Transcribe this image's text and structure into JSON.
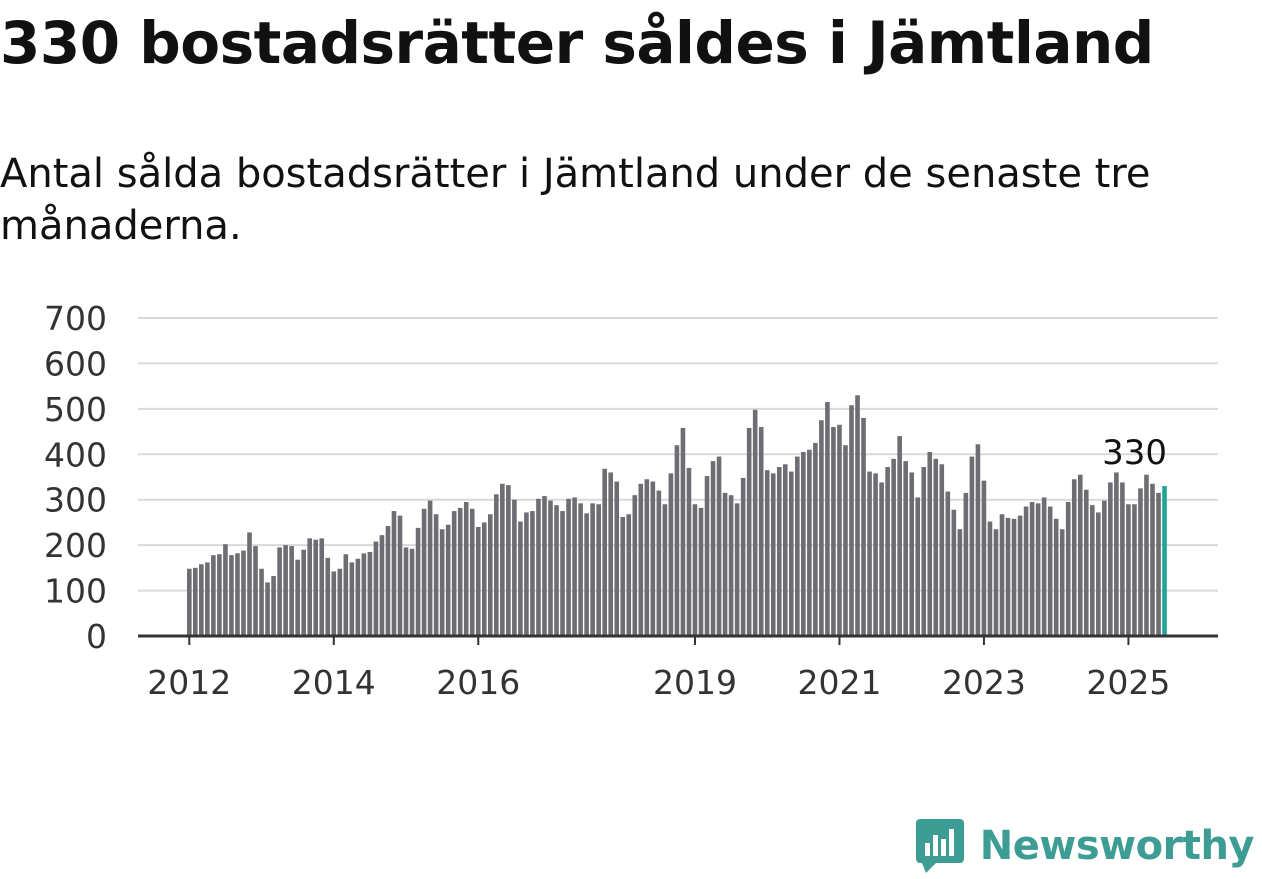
{
  "title": "330 bostadsrätter såldes i Jämtland",
  "subtitle": "Antal sålda bostadsrätter i Jämtland under de senaste tre månaderna.",
  "brand": {
    "name": "Newsworthy",
    "logo_icon": "newsworthy-logo-icon",
    "color": "#3d9d95"
  },
  "chart_data": {
    "type": "bar",
    "title": "",
    "xlabel": "",
    "ylabel": "",
    "ylim": [
      0,
      700
    ],
    "y_ticks": [
      "0",
      "100",
      "200",
      "300",
      "400",
      "500",
      "600",
      "700"
    ],
    "x_ticks": [
      {
        "label": "2012",
        "index": 0
      },
      {
        "label": "2014",
        "index": 24
      },
      {
        "label": "2016",
        "index": 48
      },
      {
        "label": "2019",
        "index": 84
      },
      {
        "label": "2021",
        "index": 108
      },
      {
        "label": "2023",
        "index": 132
      },
      {
        "label": "2025",
        "index": 156
      }
    ],
    "grid": true,
    "bar_color": "#6e6d73",
    "highlight_color": "#22a39a",
    "highlight_label": "330",
    "values": [
      148,
      150,
      158,
      162,
      178,
      180,
      202,
      178,
      182,
      188,
      228,
      198,
      148,
      118,
      132,
      195,
      200,
      198,
      168,
      190,
      215,
      212,
      215,
      172,
      142,
      148,
      180,
      162,
      170,
      182,
      185,
      208,
      222,
      242,
      275,
      265,
      195,
      192,
      238,
      280,
      298,
      268,
      235,
      245,
      275,
      282,
      295,
      280,
      240,
      250,
      268,
      312,
      335,
      332,
      300,
      252,
      272,
      275,
      302,
      308,
      298,
      288,
      275,
      302,
      305,
      292,
      270,
      292,
      290,
      368,
      360,
      340,
      262,
      268,
      310,
      335,
      345,
      340,
      320,
      290,
      358,
      420,
      458,
      370,
      290,
      282,
      352,
      385,
      395,
      315,
      310,
      292,
      348,
      458,
      498,
      460,
      365,
      358,
      372,
      378,
      362,
      395,
      405,
      410,
      425,
      475,
      515,
      460,
      465,
      420,
      508,
      530,
      480,
      362,
      358,
      338,
      372,
      390,
      440,
      385,
      360,
      305,
      372,
      405,
      390,
      378,
      318,
      278,
      235,
      315,
      395,
      422,
      342,
      252,
      235,
      268,
      260,
      258,
      265,
      285,
      295,
      292,
      305,
      285,
      258,
      235,
      295,
      345,
      355,
      322,
      288,
      272,
      298,
      338,
      360,
      338,
      290,
      290,
      325,
      355,
      335,
      315,
      330
    ]
  }
}
